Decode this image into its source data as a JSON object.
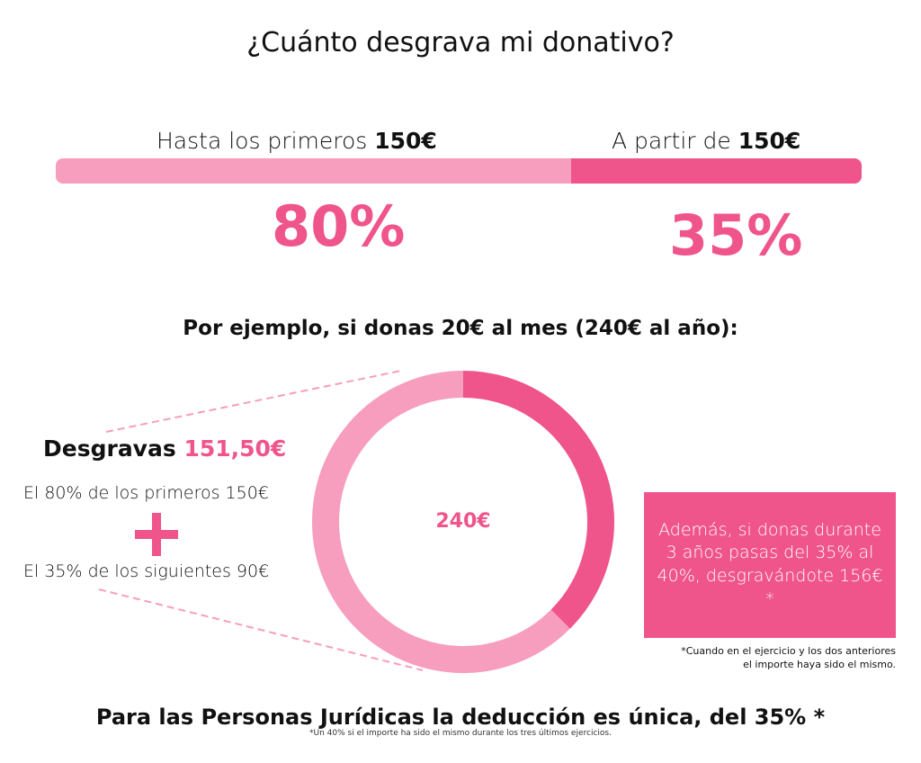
{
  "title": "¿Cuánto desgrava mi donativo?",
  "tiers": [
    {
      "label_prefix": "Hasta los primeros ",
      "label_bold": "150€",
      "rate": "80%",
      "color": "#f79dbd"
    },
    {
      "label_prefix": "A partir de ",
      "label_bold": "150€",
      "rate": "35%",
      "color": "#ef548b"
    }
  ],
  "example": {
    "heading": "Por ejemplo, si donas 20€ al mes (240€ al año):",
    "total_label": "240€",
    "donut": {
      "total": 240,
      "segments": [
        {
          "name": "primeros 150€",
          "value": 150,
          "color": "#f79dbd"
        },
        {
          "name": "siguientes 90€",
          "value": 90,
          "color": "#ef548b"
        }
      ]
    },
    "deduction_label": "Desgravas ",
    "deduction_value": "151,50€",
    "line1": "El 80% de los primeros 150€",
    "line2": "El 35% de los siguientes 90€"
  },
  "box": {
    "text": "Además, si donas durante 3 años pasas del 35% al 40%, desgravándote 156€ *"
  },
  "box_note": {
    "line1": "*Cuando en el ejercicio y los dos anteriores",
    "line2": "el importe haya sido el mismo."
  },
  "bottom": {
    "text": "Para las Personas Jurídicas la deducción es única, del 35% *",
    "note": "*Un 40% si el importe ha sido el mismo durante los tres últimos ejercicios."
  }
}
